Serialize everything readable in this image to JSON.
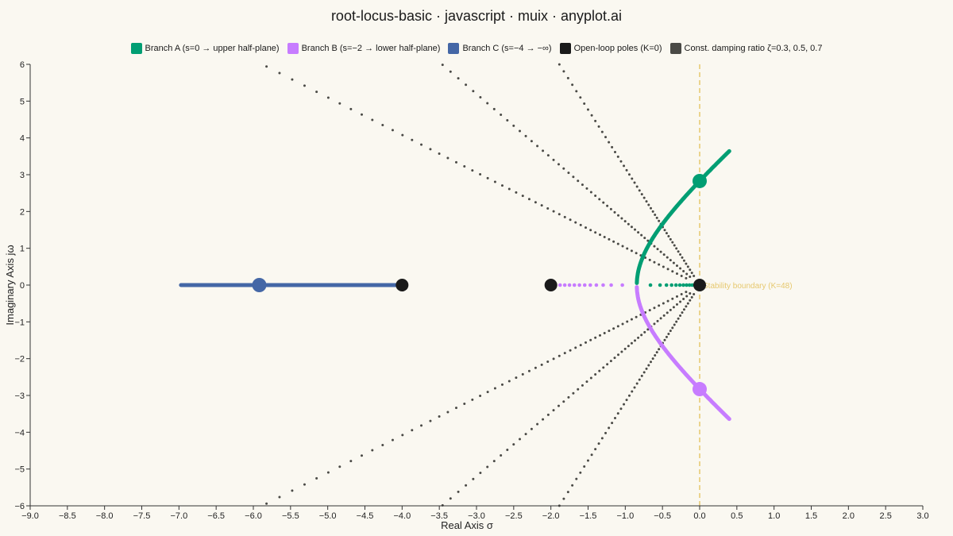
{
  "chart_data": {
    "type": "scatter",
    "title": "root-locus-basic · javascript · muix · anyplot.ai",
    "xlabel": "Real Axis σ",
    "ylabel": "Imaginary Axis jω",
    "xlim": [
      -9.0,
      3.0
    ],
    "ylim": [
      -6,
      6
    ],
    "x_ticks": [
      "−9.0",
      "−8.5",
      "−8.0",
      "−7.5",
      "−7.0",
      "−6.5",
      "−6.0",
      "−5.5",
      "−5.0",
      "−4.5",
      "−4.0",
      "−3.5",
      "−3.0",
      "−2.5",
      "−2.0",
      "−1.5",
      "−1.0",
      "−0.5",
      "0.0",
      "0.5",
      "1.0",
      "1.5",
      "2.0",
      "2.5",
      "3.0"
    ],
    "y_ticks": [
      "−6",
      "−5",
      "−4",
      "−3",
      "−2",
      "−1",
      "0",
      "1",
      "2",
      "3",
      "4",
      "5",
      "6"
    ],
    "grid": false,
    "legend_position": "top-center",
    "system": {
      "open_loop_poles": [
        0,
        -2,
        -4
      ],
      "critical_gain": 48,
      "crossing_omega": 2.828
    },
    "series": [
      {
        "name": "Branch A (s=0 → upper half-plane)",
        "color": "#009E73"
      },
      {
        "name": "Branch B (s=−2 → lower half-plane)",
        "color": "#C77CFF"
      },
      {
        "name": "Branch C (s=−4 → −∞)",
        "color": "#4467A6"
      },
      {
        "name": "Open-loop poles (K=0)",
        "color": "#1a1a1a"
      },
      {
        "name": "Const. damping ratio ζ=0.3, 0.5, 0.7",
        "color": "#4a4a46"
      }
    ],
    "damping_ratios": [
      0.3,
      0.5,
      0.7
    ],
    "stability_boundary": {
      "x": 0,
      "label": "Stability boundary (K=48)",
      "color": "#E6C86E"
    },
    "markers": [
      {
        "x": 0,
        "y": 2.828,
        "series": "Branch A (s=0 → upper half-plane)"
      },
      {
        "x": 0,
        "y": -2.828,
        "series": "Branch B (s=−2 → lower half-plane)"
      },
      {
        "x": -5.92,
        "y": 0,
        "series": "Branch C (s=−4 → −∞)"
      }
    ]
  }
}
